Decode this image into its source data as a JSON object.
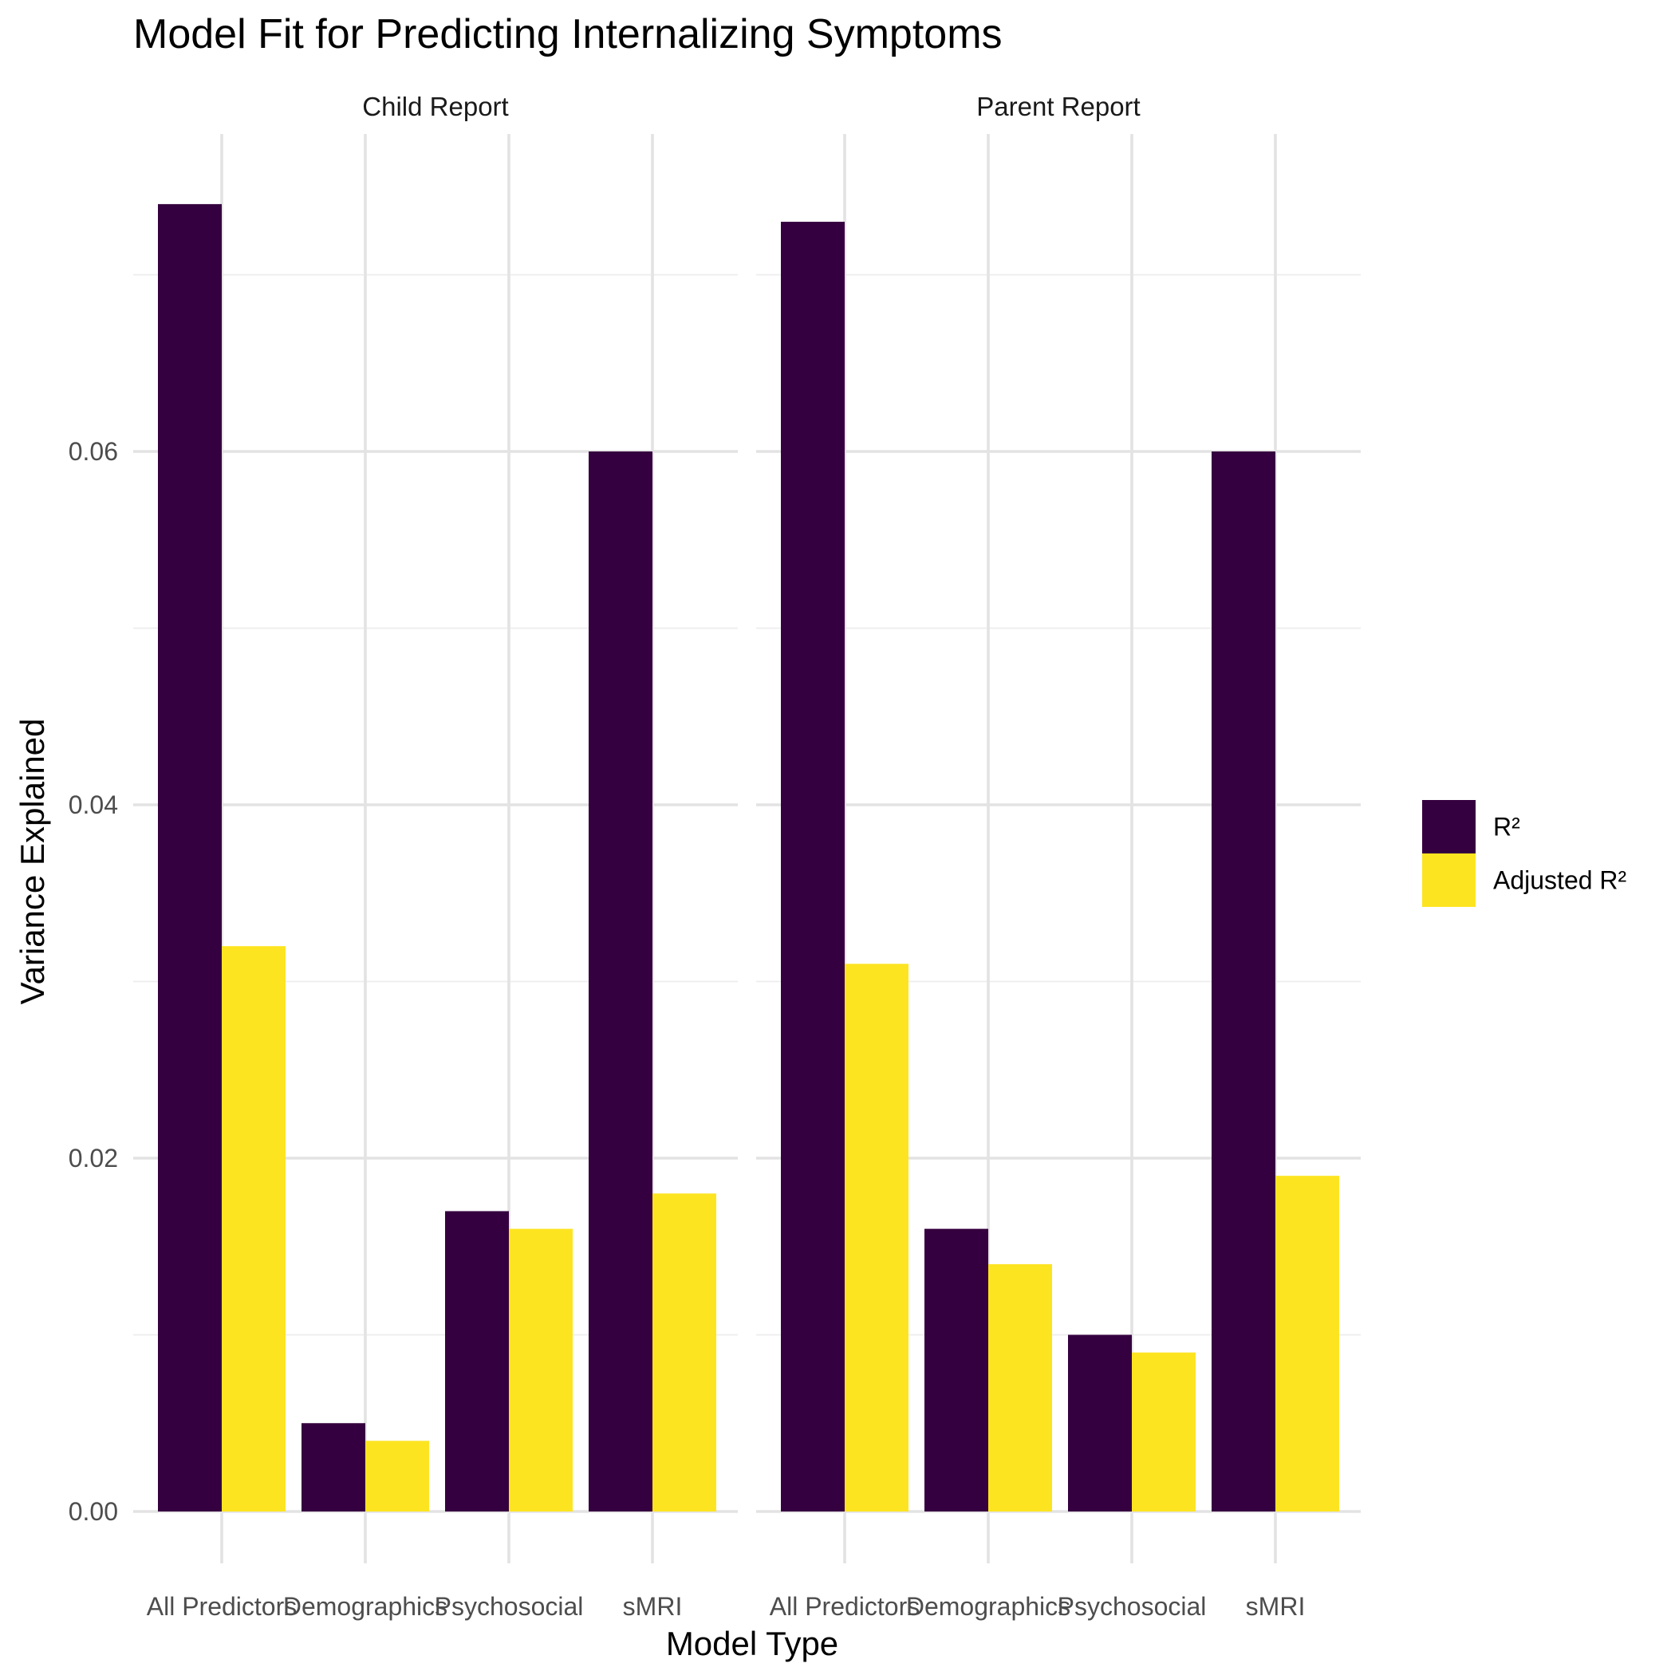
{
  "chart_data": {
    "type": "bar",
    "title": "Model Fit for Predicting Internalizing Symptoms",
    "xlabel": "Model Type",
    "ylabel": "Variance Explained",
    "categories": [
      "All Predictors",
      "Demographics",
      "Psychosocial",
      "sMRI"
    ],
    "yticks": [
      "0.00",
      "0.02",
      "0.04",
      "0.06"
    ],
    "ylim": [
      0,
      0.075
    ],
    "grid": true,
    "legend_position": "right",
    "facets": [
      {
        "label": "Child Report",
        "series": [
          {
            "name": "R²",
            "color": "#35003f",
            "values": [
              0.074,
              0.005,
              0.017,
              0.06
            ]
          },
          {
            "name": "Adjusted R²",
            "color": "#fde421",
            "values": [
              0.032,
              0.004,
              0.016,
              0.018
            ]
          }
        ]
      },
      {
        "label": "Parent Report",
        "series": [
          {
            "name": "R²",
            "color": "#35003f",
            "values": [
              0.073,
              0.016,
              0.01,
              0.06
            ]
          },
          {
            "name": "Adjusted R²",
            "color": "#fde421",
            "values": [
              0.031,
              0.014,
              0.009,
              0.019
            ]
          }
        ]
      }
    ],
    "legend": [
      {
        "name": "R²",
        "color": "#35003f"
      },
      {
        "name": "Adjusted R²",
        "color": "#fde421"
      }
    ]
  }
}
